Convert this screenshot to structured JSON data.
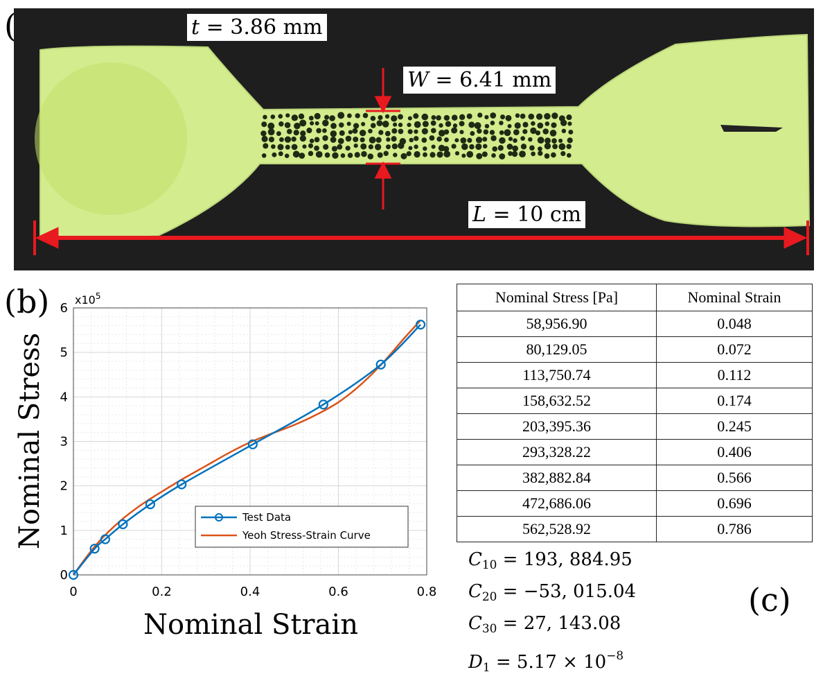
{
  "panels": {
    "a": "(a)",
    "b": "(b)",
    "c": "(c)"
  },
  "specimen": {
    "thickness": {
      "symbol": "t",
      "value": "= 3.86 mm"
    },
    "width": {
      "symbol": "W",
      "value": "= 6.41 mm"
    },
    "length": {
      "symbol": "L",
      "value": "= 10 cm"
    },
    "colors": {
      "specimen": "#d3ec8e",
      "background": "#1e1e1e",
      "annotation": "#e8191f"
    }
  },
  "chart_data": {
    "type": "line",
    "xlabel": "Nominal Strain",
    "ylabel": "Nominal Stress",
    "exponent_label": "x10",
    "exponent_power": "5",
    "xlim": [
      0,
      0.8
    ],
    "ylim": [
      0,
      6
    ],
    "xticks": [
      "0",
      "0.2",
      "0.4",
      "0.6",
      "0.8"
    ],
    "yticks": [
      "0",
      "1",
      "2",
      "3",
      "4",
      "5",
      "6"
    ],
    "grid": true,
    "legend_position": "lower-right",
    "series": [
      {
        "name": "Test Data",
        "color": "#0072bd",
        "marker": "circle",
        "x": [
          0,
          0.048,
          0.072,
          0.112,
          0.174,
          0.245,
          0.406,
          0.566,
          0.696,
          0.786
        ],
        "y": [
          0,
          0.589569,
          0.8012905,
          1.1375074,
          1.5863252,
          2.0339536,
          2.9332822,
          3.8288284,
          4.7268606,
          5.6252892
        ]
      },
      {
        "name": "Yeoh Stress-Strain Curve",
        "color": "#d95319",
        "marker": "none",
        "x": [
          0,
          0.05,
          0.1,
          0.15,
          0.2,
          0.25,
          0.3,
          0.35,
          0.4,
          0.45,
          0.5,
          0.55,
          0.6,
          0.65,
          0.7,
          0.75,
          0.786
        ],
        "y": [
          0,
          0.66,
          1.16,
          1.55,
          1.87,
          2.17,
          2.45,
          2.73,
          2.98,
          3.18,
          3.37,
          3.6,
          3.88,
          4.27,
          4.76,
          5.33,
          5.72
        ]
      }
    ]
  },
  "table": {
    "headers": [
      "Nominal Stress [Pa]",
      "Nominal Strain"
    ],
    "rows": [
      [
        "58,956.90",
        "0.048"
      ],
      [
        "80,129.05",
        "0.072"
      ],
      [
        "113,750.74",
        "0.112"
      ],
      [
        "158,632.52",
        "0.174"
      ],
      [
        "203,395.36",
        "0.245"
      ],
      [
        "293,328.22",
        "0.406"
      ],
      [
        "382,882.84",
        "0.566"
      ],
      [
        "472,686.06",
        "0.696"
      ],
      [
        "562,528.92",
        "0.786"
      ]
    ]
  },
  "constants": [
    {
      "symbol": "C",
      "sub": "10",
      "value": "= 193, 884.95",
      "sup": ""
    },
    {
      "symbol": "C",
      "sub": "20",
      "value": "= −53, 015.04",
      "sup": ""
    },
    {
      "symbol": "C",
      "sub": "30",
      "value": "= 27, 143.08",
      "sup": ""
    },
    {
      "symbol": "D",
      "sub": "1",
      "value": "= 5.17 × 10",
      "sup": "−8"
    }
  ]
}
